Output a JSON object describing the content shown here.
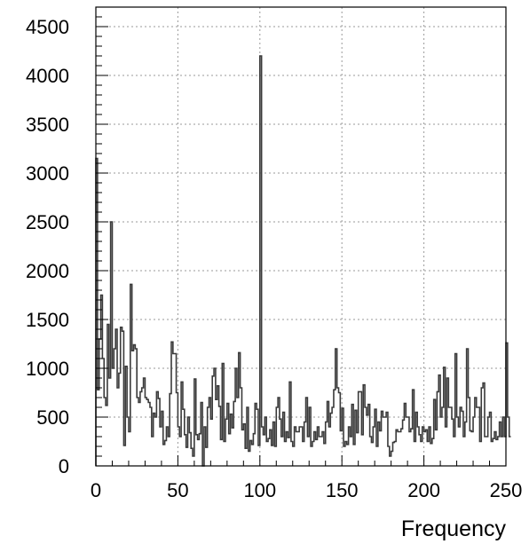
{
  "chart_data": {
    "type": "line",
    "style": "histogram",
    "title": "",
    "xlabel": "Frequency",
    "ylabel": "",
    "xlim": [
      0,
      250
    ],
    "ylim": [
      0,
      4700
    ],
    "grid": true,
    "xticks": [
      0,
      50,
      100,
      150,
      200,
      250
    ],
    "xtick_labels": [
      "0",
      "50",
      "100",
      "150",
      "200",
      "250"
    ],
    "yticks": [
      0,
      500,
      1000,
      1500,
      2000,
      2500,
      3000,
      3500,
      4000,
      4500
    ],
    "ytick_labels": [
      "0",
      "500",
      "1000",
      "1500",
      "2000",
      "2500",
      "3000",
      "3500",
      "4000",
      "4500"
    ],
    "line_color": "#3a3a3a",
    "grid_color": "#9a9a9a",
    "bin_width": 1,
    "x_start": 0,
    "values": [
      3150,
      780,
      1300,
      1750,
      1100,
      700,
      620,
      1450,
      900,
      2500,
      1000,
      1200,
      1400,
      800,
      950,
      1420,
      1380,
      210,
      1020,
      500,
      350,
      1860,
      1180,
      1240,
      1200,
      700,
      650,
      760,
      800,
      900,
      700,
      680,
      650,
      600,
      300,
      540,
      500,
      760,
      690,
      400,
      560,
      220,
      260,
      400,
      300,
      740,
      1270,
      1150,
      1150,
      750,
      400,
      300,
      860,
      580,
      320,
      190,
      500,
      340,
      180,
      100,
      890,
      320,
      270,
      330,
      650,
      0,
      400,
      190,
      600,
      700,
      480,
      920,
      1000,
      680,
      820,
      610,
      270,
      1050,
      250,
      480,
      640,
      330,
      530,
      390,
      660,
      1000,
      700,
      1160,
      800,
      370,
      430,
      180,
      600,
      150,
      260,
      220,
      330,
      640,
      580,
      210,
      4200,
      400,
      320,
      500,
      250,
      280,
      370,
      210,
      450,
      200,
      600,
      700,
      480,
      300,
      550,
      250,
      350,
      290,
      860,
      250,
      200,
      400,
      350,
      350,
      400,
      400,
      250,
      450,
      700,
      300,
      600,
      200,
      250,
      350,
      270,
      400,
      300,
      300,
      350,
      230,
      450,
      660,
      400,
      540,
      600,
      780,
      1200,
      800,
      750,
      360,
      590,
      200,
      250,
      220,
      400,
      300,
      630,
      220,
      570,
      340,
      760,
      760,
      320,
      830,
      600,
      520,
      630,
      300,
      240,
      400,
      580,
      200,
      450,
      360,
      560,
      500,
      500,
      550,
      200,
      100,
      150,
      240,
      250,
      370,
      350,
      350,
      380,
      470,
      640,
      500,
      500,
      350,
      380,
      780,
      250,
      550,
      400,
      320,
      250,
      400,
      350,
      370,
      250,
      400,
      230,
      280,
      680,
      370,
      760,
      930,
      500,
      600,
      1010,
      400,
      900,
      600,
      600,
      480,
      300,
      1150,
      500,
      400,
      600,
      560,
      300,
      450,
      1200,
      700,
      360,
      350,
      500,
      700,
      600,
      600,
      250,
      800,
      850,
      300,
      300,
      500,
      550,
      250,
      280,
      350,
      270,
      300,
      450,
      300,
      500,
      300,
      1260,
      500,
      300
    ]
  }
}
